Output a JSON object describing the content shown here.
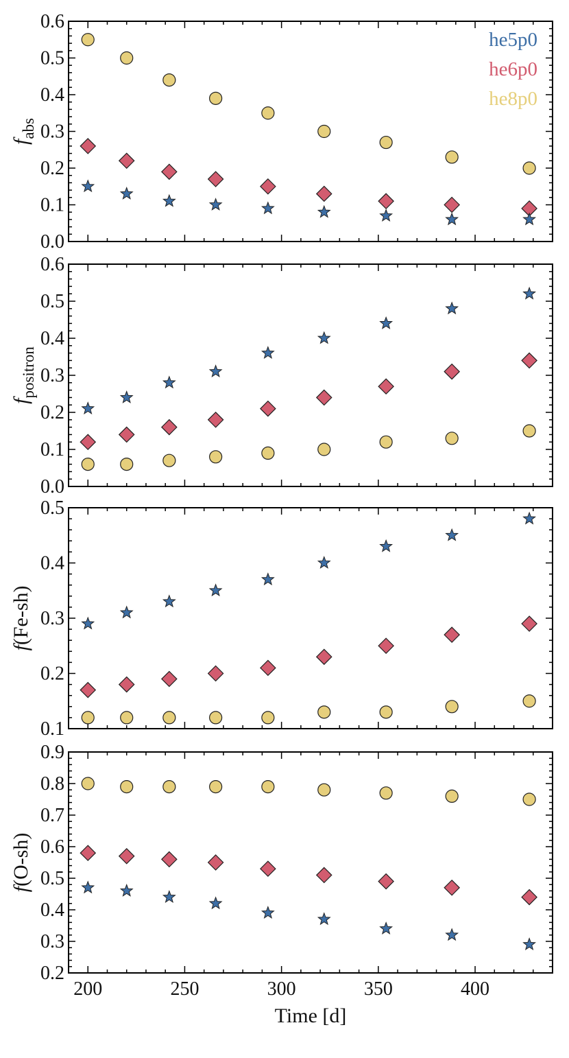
{
  "colors": {
    "he5p0": "#3e6fa6",
    "he6p0": "#d25c6f",
    "he8p0": "#e6cf7c",
    "marker_edge": "#222222"
  },
  "chart_data": [
    {
      "type": "scatter",
      "ylabel": "f_abs",
      "ylabel_main": "f",
      "ylabel_sub": "abs",
      "ylim": [
        0.0,
        0.6
      ],
      "yticks": [
        "0.0",
        "0.1",
        "0.2",
        "0.3",
        "0.4",
        "0.5",
        "0.6"
      ],
      "x": [
        200,
        220,
        242,
        266,
        293,
        322,
        354,
        388,
        428
      ],
      "xlim": [
        190,
        440
      ],
      "legend": {
        "position": "top-right",
        "entries": [
          "he5p0",
          "he6p0",
          "he8p0"
        ]
      },
      "series": [
        {
          "name": "he5p0",
          "marker": "star",
          "values": [
            0.15,
            0.13,
            0.11,
            0.1,
            0.09,
            0.08,
            0.07,
            0.06,
            0.06
          ]
        },
        {
          "name": "he6p0",
          "marker": "diamond",
          "values": [
            0.26,
            0.22,
            0.19,
            0.17,
            0.15,
            0.13,
            0.11,
            0.1,
            0.09
          ]
        },
        {
          "name": "he8p0",
          "marker": "circle",
          "values": [
            0.55,
            0.5,
            0.44,
            0.39,
            0.35,
            0.3,
            0.27,
            0.23,
            0.2
          ]
        }
      ]
    },
    {
      "type": "scatter",
      "ylabel": "f_positron",
      "ylabel_main": "f",
      "ylabel_sub": "positron",
      "ylim": [
        0.0,
        0.6
      ],
      "yticks": [
        "0.0",
        "0.1",
        "0.2",
        "0.3",
        "0.4",
        "0.5",
        "0.6"
      ],
      "x": [
        200,
        220,
        242,
        266,
        293,
        322,
        354,
        388,
        428
      ],
      "xlim": [
        190,
        440
      ],
      "series": [
        {
          "name": "he5p0",
          "marker": "star",
          "values": [
            0.21,
            0.24,
            0.28,
            0.31,
            0.36,
            0.4,
            0.44,
            0.48,
            0.52
          ]
        },
        {
          "name": "he6p0",
          "marker": "diamond",
          "values": [
            0.12,
            0.14,
            0.16,
            0.18,
            0.21,
            0.24,
            0.27,
            0.31,
            0.34
          ]
        },
        {
          "name": "he8p0",
          "marker": "circle",
          "values": [
            0.06,
            0.06,
            0.07,
            0.08,
            0.09,
            0.1,
            0.12,
            0.13,
            0.15
          ]
        }
      ]
    },
    {
      "type": "scatter",
      "ylabel": "f(Fe-sh)",
      "ylabel_main": "f",
      "ylabel_rest": "(Fe-sh)",
      "ylim": [
        0.1,
        0.5
      ],
      "yticks": [
        "0.1",
        "0.2",
        "0.3",
        "0.4",
        "0.5"
      ],
      "x": [
        200,
        220,
        242,
        266,
        293,
        322,
        354,
        388,
        428
      ],
      "xlim": [
        190,
        440
      ],
      "series": [
        {
          "name": "he5p0",
          "marker": "star",
          "values": [
            0.29,
            0.31,
            0.33,
            0.35,
            0.37,
            0.4,
            0.43,
            0.45,
            0.48
          ]
        },
        {
          "name": "he6p0",
          "marker": "diamond",
          "values": [
            0.17,
            0.18,
            0.19,
            0.2,
            0.21,
            0.23,
            0.25,
            0.27,
            0.29
          ]
        },
        {
          "name": "he8p0",
          "marker": "circle",
          "values": [
            0.12,
            0.12,
            0.12,
            0.12,
            0.12,
            0.13,
            0.13,
            0.14,
            0.15
          ]
        }
      ]
    },
    {
      "type": "scatter",
      "ylabel": "f(O-sh)",
      "ylabel_main": "f",
      "ylabel_rest": "(O-sh)",
      "ylim": [
        0.2,
        0.9
      ],
      "yticks": [
        "0.2",
        "0.3",
        "0.4",
        "0.5",
        "0.6",
        "0.7",
        "0.8",
        "0.9"
      ],
      "x": [
        200,
        220,
        242,
        266,
        293,
        322,
        354,
        388,
        428
      ],
      "xlim": [
        190,
        440
      ],
      "xlabel": "Time [d]",
      "xticks": [
        "200",
        "250",
        "300",
        "350",
        "400"
      ],
      "series": [
        {
          "name": "he5p0",
          "marker": "star",
          "values": [
            0.47,
            0.46,
            0.44,
            0.42,
            0.39,
            0.37,
            0.34,
            0.32,
            0.29
          ]
        },
        {
          "name": "he6p0",
          "marker": "diamond",
          "values": [
            0.58,
            0.57,
            0.56,
            0.55,
            0.53,
            0.51,
            0.49,
            0.47,
            0.44
          ]
        },
        {
          "name": "he8p0",
          "marker": "circle",
          "values": [
            0.8,
            0.79,
            0.79,
            0.79,
            0.79,
            0.78,
            0.77,
            0.76,
            0.75
          ]
        }
      ]
    }
  ]
}
